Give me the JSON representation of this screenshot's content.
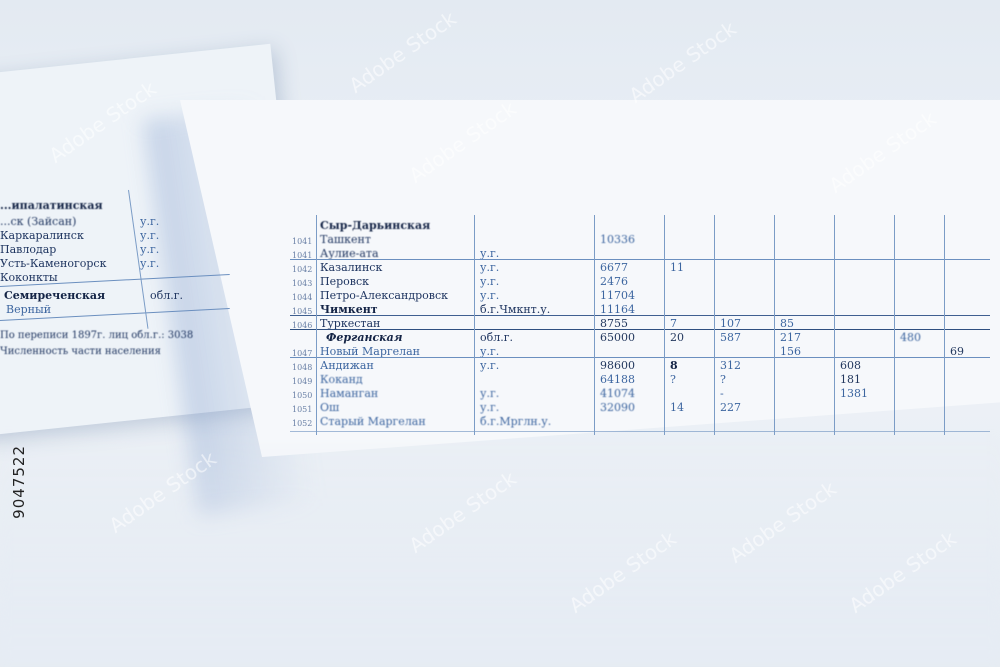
{
  "left_sheet": {
    "rows": [
      "...ипалатинская",
      "...ск (Зайсан)",
      "Каркаралинск",
      "Павлодар",
      "Усть-Каменогорск",
      "Коконкты",
      "Семиреченская",
      "Верный"
    ],
    "cells": [
      "у.г.",
      "у.г.",
      "у.г.",
      "у.г.",
      "обл.г."
    ],
    "footnote": "По переписи 1897г. лиц обл.г.: 3038",
    "footnote_2": "Численность части населения"
  },
  "main_sheet": {
    "region_1": "Сыр-Дарьинская",
    "rows": [
      {
        "no": "1041",
        "name": "Ташкент",
        "type": ""
      },
      {
        "no": "1041",
        "name": "Аулие-ата",
        "type": "у.г."
      },
      {
        "no": "1042",
        "name": "Казалинск",
        "type": "у.г."
      },
      {
        "no": "1043",
        "name": "Перовск",
        "type": "у.г."
      },
      {
        "no": "1044",
        "name": "Петро-Александровск",
        "type": "у.г."
      },
      {
        "no": "1045",
        "name": "Чимкент",
        "type": "б.г.Чмкнт.у."
      },
      {
        "no": "1046",
        "name": "Туркестан",
        "type": ""
      }
    ],
    "region_2": "Ферганская",
    "region_2_type": "обл.г.",
    "rows_2": [
      {
        "no": "1047",
        "name": "Новый Маргелан",
        "type": "у.г."
      },
      {
        "no": "1048",
        "name": "Андижан",
        "type": "у.г."
      },
      {
        "no": "1049",
        "name": "Коканд",
        "type": ""
      },
      {
        "no": "1050",
        "name": "Наманган",
        "type": "у.г."
      },
      {
        "no": "1051",
        "name": "Ош",
        "type": "у.г."
      },
      {
        "no": "1052",
        "name": "Старый Маргелан",
        "type": "б.г.Мрглн.у."
      }
    ],
    "numbers": [
      "10336",
      "6677",
      "2476",
      "11704",
      "11164",
      "8755",
      "65000",
      "98600",
      "64188",
      "41074",
      "32090",
      "7",
      "20",
      "8",
      "?",
      "14",
      "107",
      "587",
      "312",
      "?",
      "-",
      "227",
      "85",
      "217",
      "156",
      "608",
      "181",
      "1381",
      "480",
      "69",
      "11"
    ]
  },
  "watermark": "Adobe Stock",
  "stock_id": "9047522"
}
